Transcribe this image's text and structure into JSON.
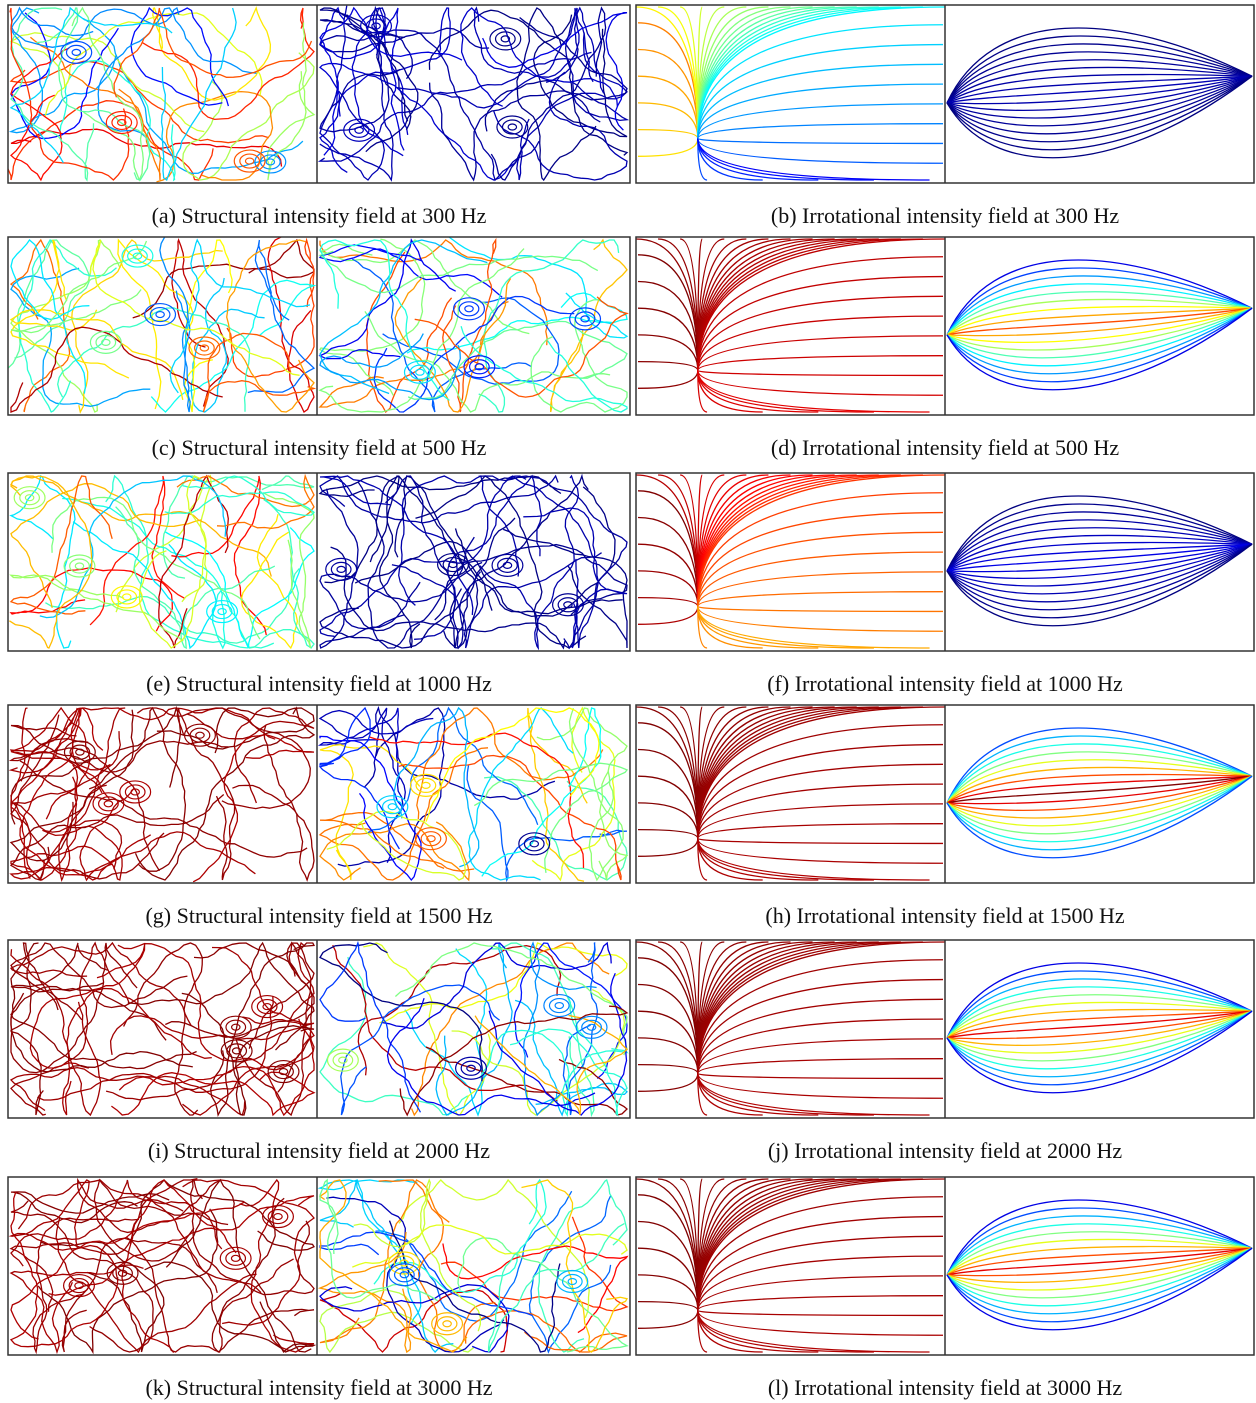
{
  "figure": {
    "panels": [
      {
        "caption": "(a) Structural intensity field at 300 Hz"
      },
      {
        "caption": "(b) Irrotational intensity field at 300 Hz"
      },
      {
        "caption": "(c) Structural intensity field at 500 Hz"
      },
      {
        "caption": "(d) Irrotational intensity field at 500 Hz"
      },
      {
        "caption": "(e) Structural intensity field at 1000 Hz"
      },
      {
        "caption": "(f) Irrotational intensity field at 1000 Hz"
      },
      {
        "caption": "(g) Structural intensity field at 1500 Hz"
      },
      {
        "caption": "(h) Irrotational intensity field at 1500 Hz"
      },
      {
        "caption": "(i) Structural intensity field at 2000 Hz"
      },
      {
        "caption": "(j) Irrotational intensity field at 2000 Hz"
      },
      {
        "caption": "(k) Structural intensity field at 3000 Hz"
      },
      {
        "caption": "(l) Irrotational intensity field at 3000 Hz"
      }
    ]
  }
}
